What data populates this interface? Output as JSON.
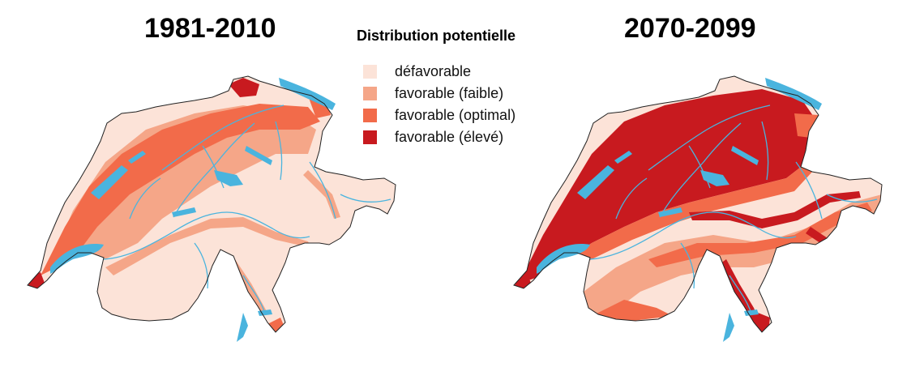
{
  "titles": {
    "left": "1981-2010",
    "right": "2070-2099"
  },
  "legend": {
    "title": "Distribution potentielle",
    "items": [
      {
        "label": "défavorable",
        "color": "#fce3d8"
      },
      {
        "label": "favorable (faible)",
        "color": "#f5a688"
      },
      {
        "label": "favorable (optimal)",
        "color": "#f26b4a"
      },
      {
        "label": "favorable (élevé)",
        "color": "#c81a1f"
      }
    ]
  },
  "colors": {
    "water": "#4ab4de",
    "border": "#222222"
  }
}
